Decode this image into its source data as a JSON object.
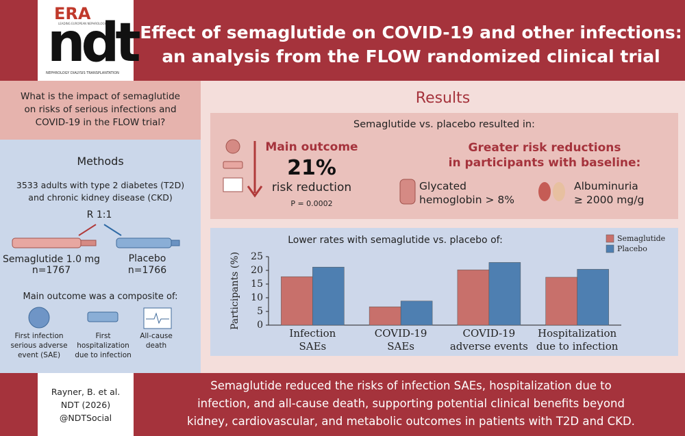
{
  "header": {
    "logo_top": "ERA",
    "logo_sub": "LEADING EUROPEAN NEPHROLOGY",
    "logo_main": "ndt",
    "logo_caption": "NEPHROLOGY DIALYSIS TRANSPLANTATION",
    "title": "Effect of semaglutide on COVID-19 and other infections:\nan analysis from the FLOW randomized clinical trial"
  },
  "left": {
    "question": "What is the impact of semaglutide\non risks of serious infections and\nCOVID-19 in the FLOW trial?",
    "methods_heading": "Methods",
    "population": "3533 adults with type 2 diabetes (T2D)\nand chronic kidney disease (CKD)",
    "randomization": "R 1:1",
    "arms": [
      {
        "name": "Semaglutide 1.0 mg",
        "n": "n=1767"
      },
      {
        "name": "Placebo",
        "n": "n=1766"
      }
    ],
    "composite_heading": "Main outcome was a composite of:",
    "components": [
      "First infection\nserious adverse\nevent (SAE)",
      "First\nhospitalization\ndue to infection",
      "All-cause\ndeath"
    ]
  },
  "results": {
    "heading": "Results",
    "summary": "Semaglutide vs. placebo resulted in:",
    "main_label": "Main outcome",
    "main_value": "21%",
    "main_desc": "risk reduction",
    "p_value": "P = 0.0002",
    "subgroup_heading": "Greater risk reductions\nin participants with baseline:",
    "subgroups": [
      "Glycated\nhemoglobin > 8%",
      "Albuminuria\n≥ 2000 mg/g"
    ]
  },
  "chart_data": {
    "type": "bar",
    "title": "Lower rates with semaglutide vs. placebo of:",
    "y_label": "Participants (%)",
    "categories": [
      "Infection\nSAEs",
      "COVID-19\nSAEs",
      "COVID-19\nadverse events",
      "Hospitalization\ndue to infection"
    ],
    "series": [
      {
        "name": "Semaglutide",
        "color": "#c8706b",
        "values": [
          17.7,
          6.7,
          20.2,
          17.5
        ]
      },
      {
        "name": "Placebo",
        "color": "#4e7fb1",
        "values": [
          21.2,
          8.8,
          22.9,
          20.4
        ]
      }
    ],
    "ylim": [
      0,
      25
    ],
    "yticks": [
      0,
      5,
      10,
      15,
      20,
      25
    ],
    "legend": "top-right"
  },
  "footer": {
    "citation": "Rayner, B. et al.\nNDT (2026)\n@NDTSocial",
    "summary": "Semaglutide reduced the risks of infection SAEs, hospitalization due to\ninfection, and all-cause death, supporting potential clinical benefits beyond\nkidney, cardiovascular, and metabolic outcomes in patients with T2D and CKD."
  }
}
